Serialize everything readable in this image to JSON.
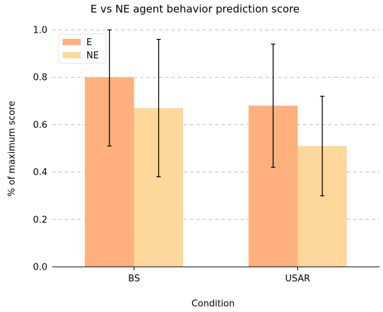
{
  "chart_data": {
    "type": "bar",
    "title": "E vs NE agent behavior prediction score",
    "xlabel": "Condition",
    "ylabel": "% of maximum score",
    "categories": [
      "BS",
      "USAR"
    ],
    "ylim": [
      0,
      1.0
    ],
    "yticks": [
      0.0,
      0.2,
      0.4,
      0.6,
      0.8,
      1.0
    ],
    "ytick_labels": [
      "0.0",
      "0.2",
      "0.4",
      "0.6",
      "0.8",
      "1.0"
    ],
    "grid": "horizontal-dashed",
    "legend_position": "top-left",
    "series": [
      {
        "name": "E",
        "color": "#ffb07c",
        "values": [
          0.8,
          0.68
        ],
        "error_low": [
          0.51,
          0.42
        ],
        "error_high": [
          1.0,
          0.94
        ]
      },
      {
        "name": "NE",
        "color": "#fed89b",
        "values": [
          0.67,
          0.51
        ],
        "error_low": [
          0.38,
          0.3
        ],
        "error_high": [
          0.96,
          0.72
        ]
      }
    ]
  }
}
